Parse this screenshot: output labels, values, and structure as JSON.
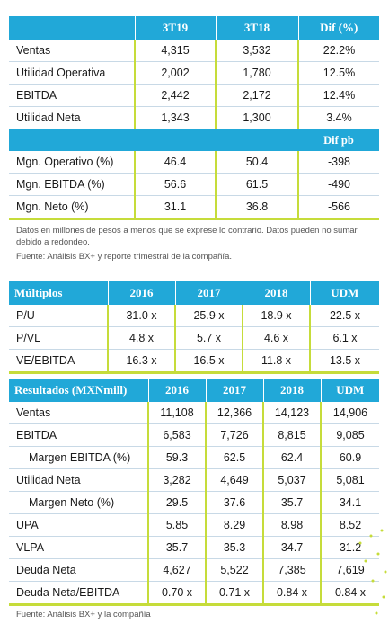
{
  "table1": {
    "headers": [
      "",
      "3T19",
      "3T18",
      "Dif (%)"
    ],
    "rows": [
      {
        "label": "Ventas",
        "v1": "4,315",
        "v2": "3,532",
        "v3": "22.2%"
      },
      {
        "label": "Utilidad Operativa",
        "v1": "2,002",
        "v2": "1,780",
        "v3": "12.5%"
      },
      {
        "label": "EBITDA",
        "v1": "2,442",
        "v2": "2,172",
        "v3": "12.4%"
      },
      {
        "label": "Utilidad Neta",
        "v1": "1,343",
        "v2": "1,300",
        "v3": "3.4%"
      }
    ],
    "subheader": "Dif pb",
    "rows2": [
      {
        "label": "Mgn. Operativo (%)",
        "v1": "46.4",
        "v2": "50.4",
        "v3": "-398"
      },
      {
        "label": "Mgn. EBITDA (%)",
        "v1": "56.6",
        "v2": "61.5",
        "v3": "-490"
      },
      {
        "label": "Mgn. Neto (%)",
        "v1": "31.1",
        "v2": "36.8",
        "v3": "-566"
      }
    ]
  },
  "note1": "Datos en millones de pesos a menos que se exprese lo contrario. Datos pueden no sumar debido a redondeo.",
  "source1": "Fuente: Análisis BX+ y reporte trimestral de la compañía.",
  "table2": {
    "headers": [
      "Múltiplos",
      "2016",
      "2017",
      "2018",
      "UDM"
    ],
    "rows": [
      {
        "label": "P/U",
        "v": [
          "31.0 x",
          "25.9 x",
          "18.9 x",
          "22.5 x"
        ]
      },
      {
        "label": "P/VL",
        "v": [
          "4.8 x",
          "5.7 x",
          "4.6 x",
          "6.1 x"
        ]
      },
      {
        "label": "VE/EBITDA",
        "v": [
          "16.3 x",
          "16.5 x",
          "11.8 x",
          "13.5 x"
        ]
      }
    ]
  },
  "table3": {
    "headers": [
      "Resultados (MXNmill)",
      "2016",
      "2017",
      "2018",
      "UDM"
    ],
    "rows": [
      {
        "label": "Ventas",
        "v": [
          "11,108",
          "12,366",
          "14,123",
          "14,906"
        ]
      },
      {
        "label": "EBITDA",
        "v": [
          "6,583",
          "7,726",
          "8,815",
          "9,085"
        ]
      },
      {
        "label": "Margen EBITDA (%)",
        "v": [
          "59.3",
          "62.5",
          "62.4",
          "60.9"
        ]
      },
      {
        "label": "Utilidad Neta",
        "v": [
          "3,282",
          "4,649",
          "5,037",
          "5,081"
        ]
      },
      {
        "label": "Margen Neto (%)",
        "v": [
          "29.5",
          "37.6",
          "35.7",
          "34.1"
        ]
      },
      {
        "label": "UPA",
        "v": [
          "5.85",
          "8.29",
          "8.98",
          "8.52"
        ]
      },
      {
        "label": "VLPA",
        "v": [
          "35.7",
          "35.3",
          "34.7",
          "31.2"
        ]
      },
      {
        "label": "Deuda Neta",
        "v": [
          "4,627",
          "5,522",
          "7,385",
          "7,619"
        ]
      },
      {
        "label": "Deuda Neta/EBITDA",
        "v": [
          "0.70 x",
          "0.71 x",
          "0.84 x",
          "0.84 x"
        ]
      }
    ]
  },
  "source2": "Fuente: Análisis BX+ y la compañía"
}
